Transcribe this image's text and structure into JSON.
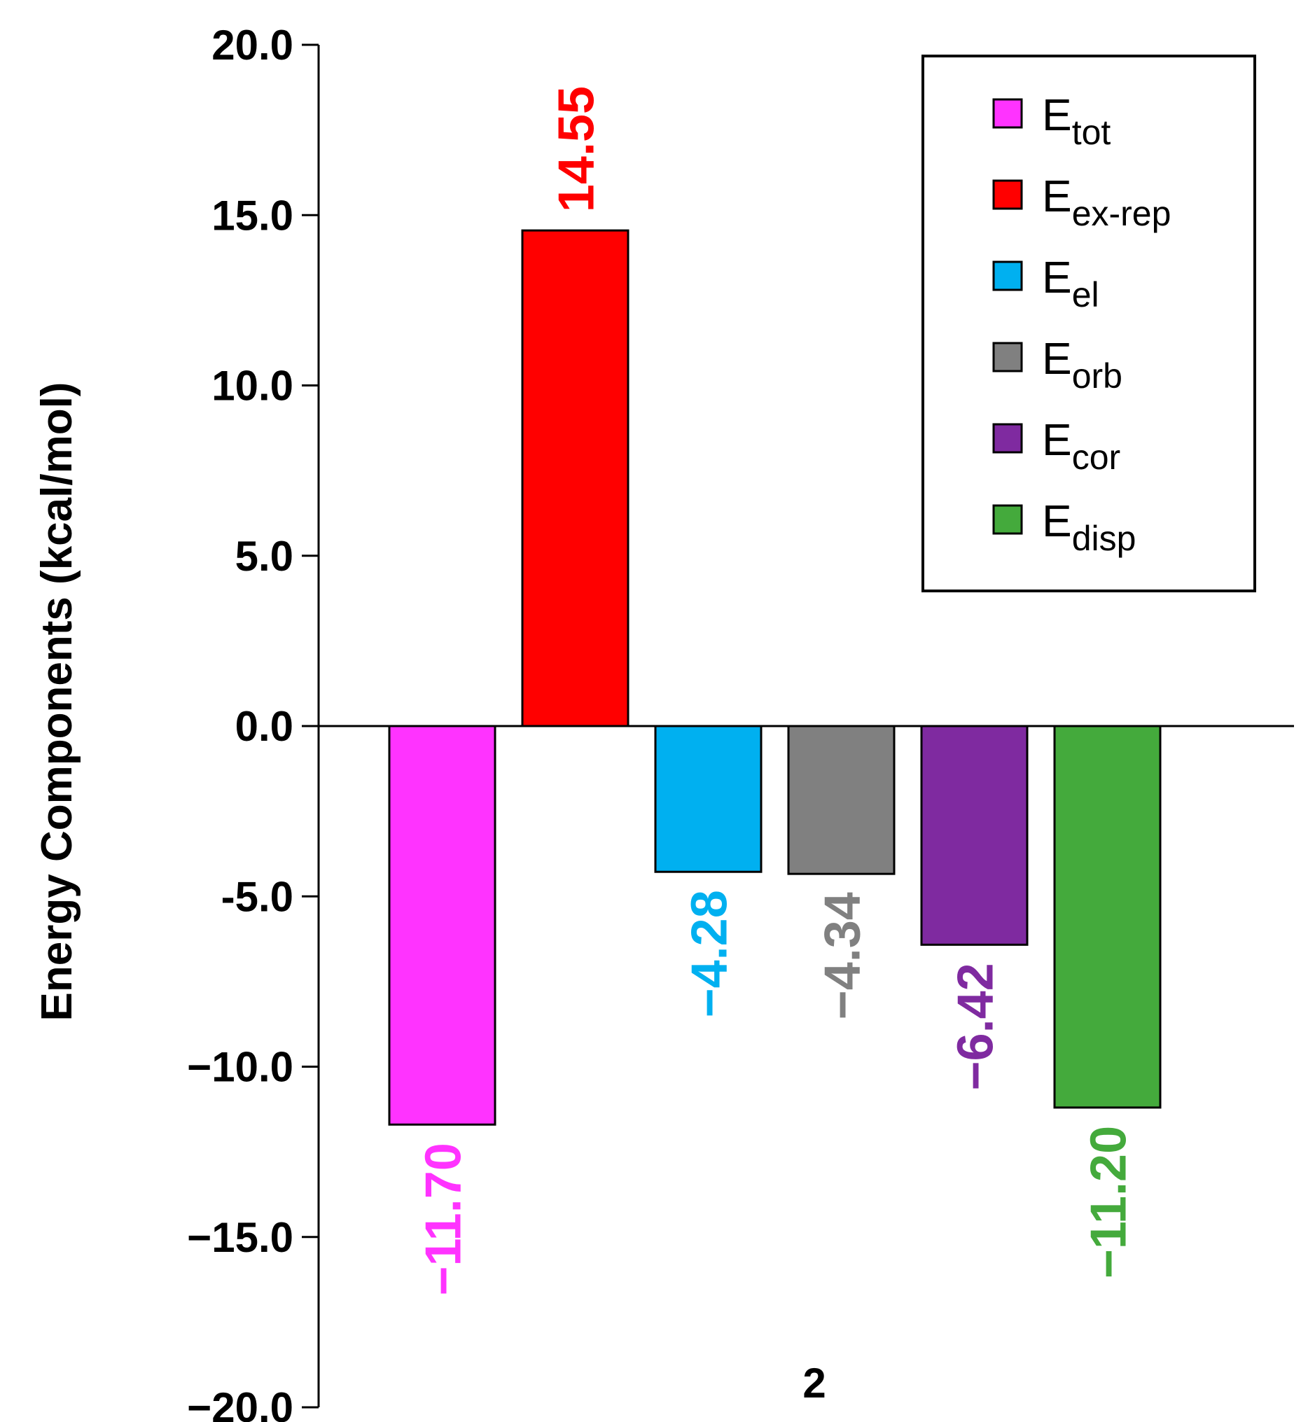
{
  "chart_data": {
    "type": "bar",
    "title": "",
    "xlabel": "",
    "ylabel": "Energy Components (kcal/mol)",
    "ylim": [
      -20,
      20
    ],
    "yticks": [
      20,
      15,
      10,
      5,
      0,
      -5,
      -10,
      -15,
      -20
    ],
    "ytick_labels": [
      "20.0",
      "15.0",
      "10.0",
      "5.0",
      "0.0",
      "-5.0",
      "−10.0",
      "−15.0",
      "−20.0"
    ],
    "categories": [
      "2"
    ],
    "legend_position": "top-right",
    "series": [
      {
        "name": "E",
        "sub": "tot",
        "value": -11.7,
        "label": "−11.70",
        "color": "#ff33ff"
      },
      {
        "name": "E",
        "sub": "ex-rep",
        "value": 14.55,
        "label": "14.55",
        "color": "#ff0000"
      },
      {
        "name": "E",
        "sub": "el",
        "value": -4.28,
        "label": "−4.28",
        "color": "#00b0f0"
      },
      {
        "name": "E",
        "sub": "orb",
        "value": -4.34,
        "label": "−4.34",
        "color": "#808080"
      },
      {
        "name": "E",
        "sub": "cor",
        "value": -6.42,
        "label": "−6.42",
        "color": "#7f2aa0"
      },
      {
        "name": "E",
        "sub": "disp",
        "value": -11.2,
        "label": "−11.20",
        "color": "#44aa3c"
      }
    ]
  }
}
